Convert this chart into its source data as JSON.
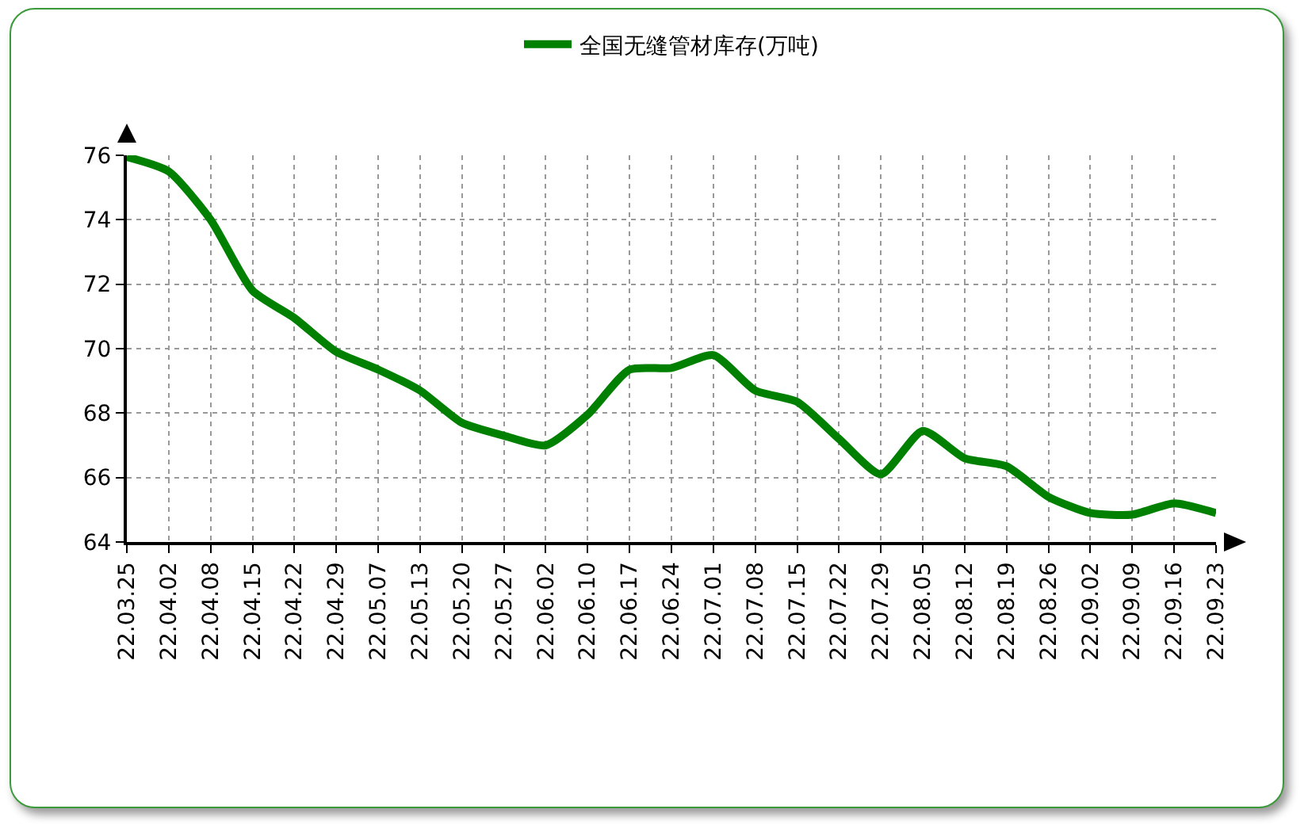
{
  "chart_data": {
    "type": "line",
    "categories": [
      "22.03.25",
      "22.04.02",
      "22.04.08",
      "22.04.15",
      "22.04.22",
      "22.04.29",
      "22.05.07",
      "22.05.13",
      "22.05.20",
      "22.05.27",
      "22.06.02",
      "22.06.10",
      "22.06.17",
      "22.06.24",
      "22.07.01",
      "22.07.08",
      "22.07.15",
      "22.07.22",
      "22.07.29",
      "22.08.05",
      "22.08.12",
      "22.08.19",
      "22.08.26",
      "22.09.02",
      "22.09.09",
      "22.09.16",
      "22.09.23"
    ],
    "series": [
      {
        "name": "全国无缝管材库存(万吨)",
        "color": "#008000",
        "values": [
          75.95,
          75.5,
          74.0,
          71.8,
          70.95,
          69.9,
          69.35,
          68.7,
          67.7,
          67.3,
          67.0,
          67.95,
          69.35,
          69.4,
          69.8,
          68.7,
          68.35,
          67.2,
          66.1,
          67.45,
          66.6,
          66.35,
          65.4,
          64.9,
          64.85,
          65.2,
          64.9
        ]
      }
    ],
    "ylim": [
      64,
      76
    ],
    "yticks": [
      64,
      66,
      68,
      70,
      72,
      74,
      76
    ],
    "grid": true,
    "legend": "top",
    "marker": "none",
    "line_style": "solid"
  }
}
